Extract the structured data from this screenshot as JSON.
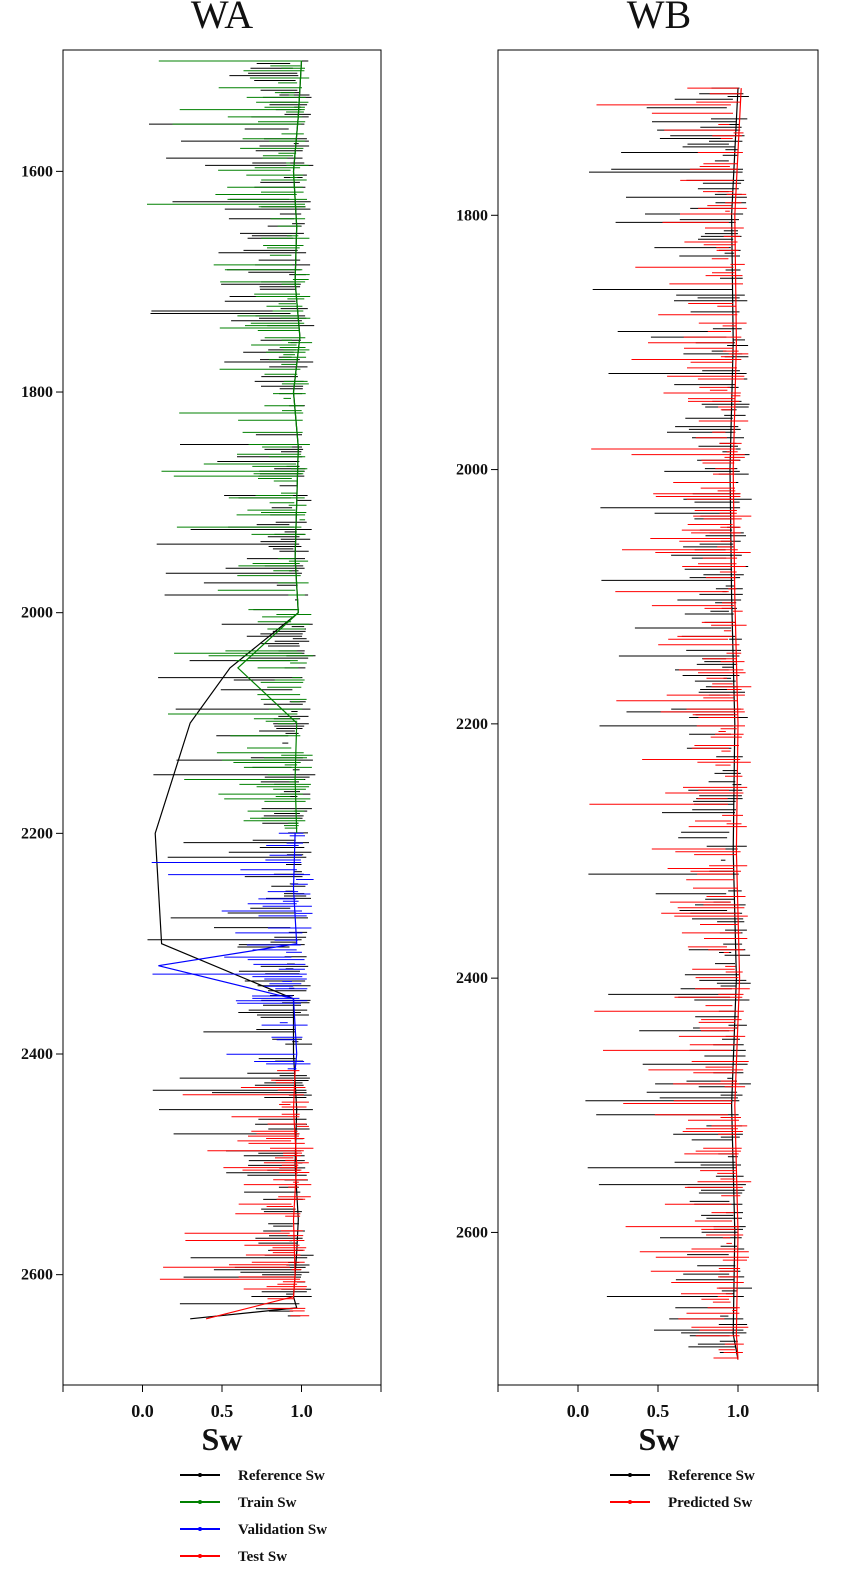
{
  "chart_data": [
    {
      "type": "line",
      "title": "WA",
      "xlabel": "Sw",
      "ylabel": "",
      "xlim": [
        -0.5,
        1.5
      ],
      "xticks": [
        "0.0",
        "0.5",
        "1.0"
      ],
      "ylim": [
        2700,
        1490
      ],
      "yticks": [
        "1600",
        "1800",
        "2000",
        "2200",
        "2400",
        "2600"
      ],
      "legend_position": "bottom-center",
      "series": [
        {
          "name": "Reference Sw",
          "color": "#000000",
          "depth_range": [
            1500,
            2640
          ],
          "x": [
            1.0,
            0.98,
            0.95,
            0.97,
            0.96,
            0.99,
            0.95,
            0.98,
            0.97,
            0.96,
            0.98,
            0.55,
            0.3,
            0.08,
            0.12,
            0.95,
            0.95,
            0.97,
            0.96,
            0.98,
            0.97,
            0.96,
            0.95,
            0.97,
            0.3
          ],
          "y": [
            1500,
            1550,
            1600,
            1650,
            1700,
            1750,
            1800,
            1850,
            1900,
            1950,
            2000,
            2050,
            2100,
            2200,
            2300,
            2350,
            2400,
            2450,
            2500,
            2550,
            2580,
            2600,
            2620,
            2630,
            2640
          ]
        },
        {
          "name": "Train Sw",
          "color": "#008000",
          "depth_range": [
            1500,
            2200
          ],
          "x": [
            1.0,
            0.98,
            0.95,
            0.97,
            0.96,
            0.99,
            0.95,
            0.98,
            0.97,
            0.96,
            0.98,
            0.6,
            0.97,
            0.96,
            0.97
          ],
          "y": [
            1500,
            1550,
            1600,
            1650,
            1700,
            1750,
            1800,
            1850,
            1900,
            1950,
            2000,
            2050,
            2100,
            2150,
            2200
          ]
        },
        {
          "name": "Validation Sw",
          "color": "#0000ff",
          "depth_range": [
            2200,
            2415
          ],
          "x": [
            0.96,
            0.95,
            0.97,
            0.1,
            0.95,
            0.97,
            0.96
          ],
          "y": [
            2200,
            2250,
            2300,
            2320,
            2350,
            2400,
            2415
          ]
        },
        {
          "name": "Test Sw",
          "color": "#ff0000",
          "depth_range": [
            2415,
            2640
          ],
          "x": [
            0.96,
            0.95,
            0.97,
            0.95,
            0.96,
            0.95,
            0.4
          ],
          "y": [
            2415,
            2450,
            2500,
            2550,
            2600,
            2620,
            2640
          ]
        }
      ]
    },
    {
      "type": "line",
      "title": "WB",
      "xlabel": "Sw",
      "ylabel": "",
      "xlim": [
        -0.5,
        1.5
      ],
      "xticks": [
        "0.0",
        "0.5",
        "1.0"
      ],
      "ylim": [
        2720,
        1670
      ],
      "yticks": [
        "1800",
        "2000",
        "2200",
        "2400",
        "2600"
      ],
      "legend_position": "bottom-right",
      "series": [
        {
          "name": "Reference Sw",
          "color": "#000000",
          "depth_range": [
            1700,
            2700
          ],
          "x": [
            1.0,
            0.98,
            0.96,
            0.97,
            0.95,
            0.96,
            0.98,
            0.97,
            0.99,
            0.96,
            0.98,
            0.97,
            1.0
          ],
          "y": [
            1700,
            1750,
            1800,
            1900,
            2000,
            2100,
            2200,
            2300,
            2400,
            2500,
            2600,
            2680,
            2700
          ]
        },
        {
          "name": "Predicted Sw",
          "color": "#ff0000",
          "depth_range": [
            1700,
            2700
          ],
          "x": [
            1.02,
            1.0,
            0.98,
            0.99,
            0.97,
            0.98,
            1.0,
            0.99,
            1.01,
            0.98,
            1.0,
            0.99,
            1.0
          ],
          "y": [
            1700,
            1750,
            1800,
            1900,
            2000,
            2100,
            2200,
            2300,
            2400,
            2500,
            2600,
            2680,
            2700
          ]
        }
      ]
    }
  ]
}
